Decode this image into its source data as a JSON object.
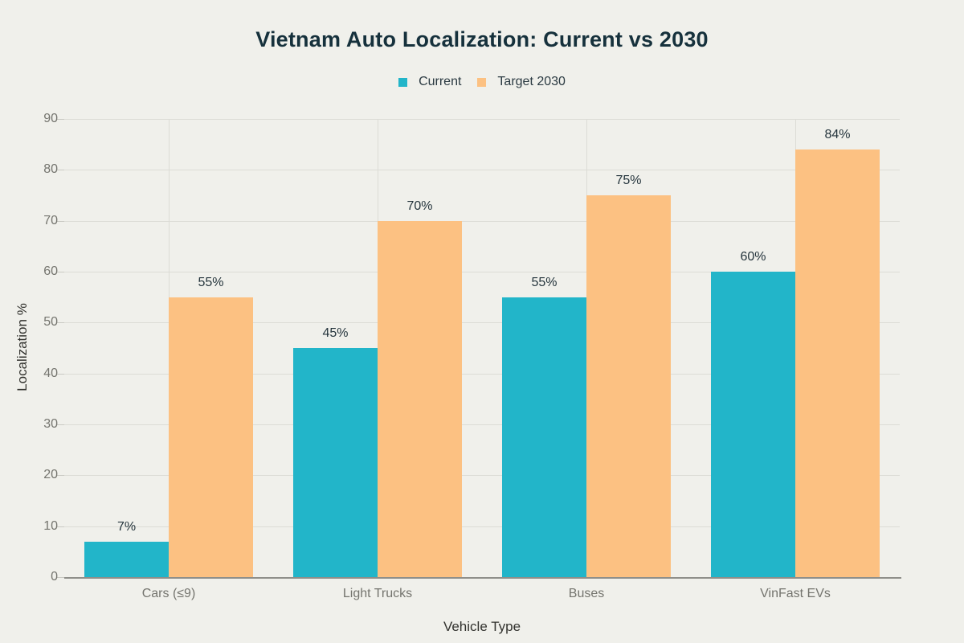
{
  "chart_data": {
    "type": "bar",
    "title": "Vietnam Auto Localization: Current vs 2030",
    "categories": [
      "Cars (≤9)",
      "Light Trucks",
      "Buses",
      "VinFast EVs"
    ],
    "series": [
      {
        "name": "Current",
        "color": "#22b5c9",
        "values": [
          7,
          45,
          55,
          60
        ],
        "labels": [
          "7%",
          "45%",
          "55%",
          "60%"
        ]
      },
      {
        "name": "Target 2030",
        "color": "#fcc182",
        "values": [
          55,
          70,
          75,
          84
        ],
        "labels": [
          "55%",
          "70%",
          "75%",
          "84%"
        ]
      }
    ],
    "xlabel": "Vehicle Type",
    "ylabel": "Localization %",
    "ylim": [
      0,
      90
    ],
    "yticks": [
      0,
      10,
      20,
      30,
      40,
      50,
      60,
      70,
      80,
      90
    ],
    "ytick_labels": [
      "0",
      "10",
      "20",
      "30",
      "40",
      "50",
      "60",
      "70",
      "80",
      "90"
    ],
    "grid": "horizontal lines at each ytick, vertical lines at category centers",
    "legend_position": "top-center"
  },
  "colors": {
    "background": "#f0f0eb",
    "current_series": "#22b5c9",
    "target_series": "#fcc182",
    "gridline": "#dcdcd6",
    "axis_line": "#8f8f8a",
    "tick_text": "#74746e",
    "title_text": "#16313c",
    "value_label_text": "#24343c",
    "axis_title_text": "#32322e"
  }
}
